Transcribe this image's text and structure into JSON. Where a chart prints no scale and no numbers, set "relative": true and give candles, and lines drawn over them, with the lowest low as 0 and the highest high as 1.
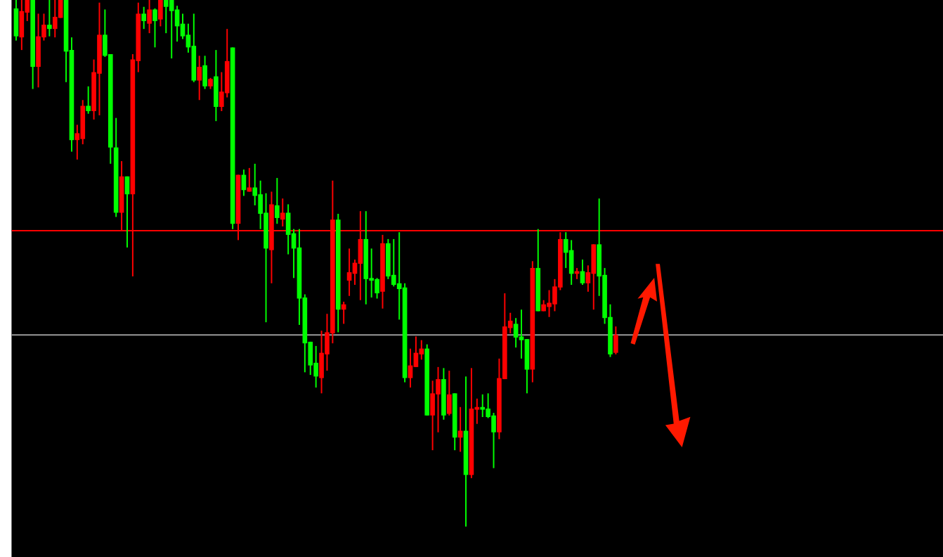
{
  "chart_data": {
    "type": "candlestick",
    "relative": true,
    "categories": [
      null,
      null,
      null,
      null,
      null,
      null,
      null,
      null,
      null,
      null,
      null,
      null,
      null,
      null,
      null,
      null,
      null,
      null,
      null,
      null,
      null,
      null,
      null,
      null,
      null,
      null,
      null,
      null,
      null,
      null,
      null,
      null,
      null,
      null,
      null,
      null,
      null,
      null,
      null,
      null,
      null,
      null,
      null,
      null,
      null,
      null,
      null,
      null,
      null,
      null,
      null,
      null,
      null,
      null,
      null,
      null,
      null,
      null,
      null,
      null,
      null,
      null,
      null,
      null,
      null,
      null,
      null,
      null,
      null,
      null,
      null,
      null,
      null,
      null,
      null,
      null,
      null,
      null,
      null,
      null,
      null,
      null,
      null,
      null,
      null,
      null,
      null,
      null,
      null,
      null,
      null,
      null,
      null,
      null,
      null,
      null,
      null,
      null,
      null,
      null,
      null,
      null,
      null,
      null,
      null,
      null,
      null,
      null,
      null
    ],
    "ohlc": [
      [
        0.984,
        1,
        0.923,
        0.931
      ],
      [
        0.929,
        1,
        0.905,
        0.979
      ],
      [
        0.976,
        1,
        0.96,
        1
      ],
      [
        1,
        1,
        0.831,
        0.873
      ],
      [
        0.873,
        0.974,
        0.834,
        0.931
      ],
      [
        0.929,
        0.974,
        0.923,
        0.953
      ],
      [
        0.953,
        1,
        0.931,
        0.945
      ],
      [
        0.945,
        1,
        0.929,
        0.968
      ],
      [
        0.966,
        1,
        0.966,
        1
      ],
      [
        1,
        1,
        0.844,
        0.902
      ],
      [
        0.905,
        0.929,
        0.712,
        0.734
      ],
      [
        0.734,
        0.763,
        0.697,
        0.747
      ],
      [
        0.736,
        0.81,
        0.726,
        0.799
      ],
      [
        0.799,
        0.836,
        0.784,
        0.789
      ],
      [
        0.789,
        0.887,
        0.773,
        0.863
      ],
      [
        0.86,
        0.995,
        0.781,
        0.934
      ],
      [
        0.934,
        0.982,
        0.892,
        0.894
      ],
      [
        0.897,
        0.897,
        0.689,
        0.72
      ],
      [
        0.72,
        0.776,
        0.588,
        0.596
      ],
      [
        0.596,
        0.694,
        0.562,
        0.665
      ],
      [
        0.665,
        0.665,
        0.53,
        0.631
      ],
      [
        0.631,
        0.897,
        0.475,
        0.887
      ],
      [
        0.884,
        0.995,
        0.863,
        0.974
      ],
      [
        0.974,
        0.987,
        0.945,
        0.96
      ],
      [
        0.955,
        1,
        0.937,
        0.982
      ],
      [
        0.982,
        0.984,
        0.91,
        0.96
      ],
      [
        0.963,
        1,
        0.95,
        1
      ],
      [
        1,
        1,
        0.937,
        0.987
      ],
      [
        1,
        1,
        0.889,
        0.979
      ],
      [
        0.982,
        0.989,
        0.921,
        0.95
      ],
      [
        0.955,
        0.974,
        0.926,
        0.931
      ],
      [
        0.934,
        0.955,
        0.9,
        0.91
      ],
      [
        0.913,
        0.974,
        0.844,
        0.847
      ],
      [
        0.847,
        0.894,
        0.81,
        0.873
      ],
      [
        0.876,
        0.894,
        0.831,
        0.836
      ],
      [
        0.836,
        0.852,
        0.831,
        0.85
      ],
      [
        0.855,
        0.905,
        0.77,
        0.797
      ],
      [
        0.797,
        0.863,
        0.789,
        0.826
      ],
      [
        0.823,
        0.945,
        0.815,
        0.884
      ],
      [
        0.91,
        0.91,
        0.565,
        0.575
      ],
      [
        0.575,
        0.668,
        0.544,
        0.668
      ],
      [
        0.668,
        0.678,
        0.628,
        0.639
      ],
      [
        0.636,
        0.681,
        0.636,
        0.644
      ],
      [
        0.644,
        0.689,
        0.61,
        0.628
      ],
      [
        0.631,
        0.657,
        0.565,
        0.594
      ],
      [
        0.596,
        0.633,
        0.388,
        0.528
      ],
      [
        0.525,
        0.636,
        0.462,
        0.612
      ],
      [
        0.61,
        0.662,
        0.575,
        0.586
      ],
      [
        0.583,
        0.623,
        0.57,
        0.596
      ],
      [
        0.596,
        0.612,
        0.517,
        0.554
      ],
      [
        0.557,
        0.565,
        0.472,
        0.528
      ],
      [
        0.53,
        0.565,
        0.383,
        0.433
      ],
      [
        0.435,
        0.441,
        0.293,
        0.348
      ],
      [
        0.351,
        0.351,
        0.288,
        0.306
      ],
      [
        0.311,
        0.343,
        0.264,
        0.285
      ],
      [
        0.282,
        0.372,
        0.253,
        0.33
      ],
      [
        0.327,
        0.404,
        0.296,
        0.369
      ],
      [
        0.367,
        0.657,
        0.348,
        0.583
      ],
      [
        0.583,
        0.594,
        0.369,
        0.412
      ],
      [
        0.412,
        0.427,
        0.385,
        0.422
      ],
      [
        0.467,
        0.528,
        0.438,
        0.483
      ],
      [
        0.48,
        0.507,
        0.459,
        0.501
      ],
      [
        0.499,
        0.599,
        0.43,
        0.546
      ],
      [
        0.546,
        0.599,
        0.422,
        0.47
      ],
      [
        0.472,
        0.528,
        0.435,
        0.467
      ],
      [
        0.47,
        0.472,
        0.433,
        0.443
      ],
      [
        0.446,
        0.554,
        0.414,
        0.538
      ],
      [
        0.538,
        0.546,
        0.47,
        0.475
      ],
      [
        0.478,
        0.546,
        0.456,
        0.459
      ],
      [
        0.462,
        0.559,
        0.393,
        0.451
      ],
      [
        0.454,
        0.462,
        0.274,
        0.282
      ],
      [
        0.282,
        0.338,
        0.264,
        0.306
      ],
      [
        0.303,
        0.361,
        0.303,
        0.33
      ],
      [
        0.327,
        0.354,
        0.317,
        0.338
      ],
      [
        0.338,
        0.346,
        0.211,
        0.211
      ],
      [
        0.211,
        0.277,
        0.145,
        0.253
      ],
      [
        0.251,
        0.303,
        0.179,
        0.28
      ],
      [
        0.28,
        0.301,
        0.203,
        0.211
      ],
      [
        0.214,
        0.296,
        0.211,
        0.251
      ],
      [
        0.253,
        0.253,
        0.145,
        0.169
      ],
      [
        0.169,
        0.227,
        0.142,
        0.182
      ],
      [
        0.182,
        0.285,
        0,
        0.098
      ],
      [
        0.098,
        0.301,
        0.092,
        0.224
      ],
      [
        0.222,
        0.243,
        0.195,
        0.227
      ],
      [
        0.227,
        0.251,
        0.208,
        0.222
      ],
      [
        0.224,
        0.253,
        0.206,
        0.208
      ],
      [
        0.211,
        0.216,
        0.111,
        0.179
      ],
      [
        0.179,
        0.319,
        0.166,
        0.282
      ],
      [
        0.28,
        0.443,
        0.28,
        0.38
      ],
      [
        0.377,
        0.406,
        0.367,
        0.391
      ],
      [
        0.385,
        0.396,
        0.34,
        0.359
      ],
      [
        0.361,
        0.412,
        0.319,
        0.354
      ],
      [
        0.356,
        0.356,
        0.253,
        0.298
      ],
      [
        0.298,
        0.504,
        0.274,
        0.491
      ],
      [
        0.491,
        0.565,
        0.409,
        0.409
      ],
      [
        0.409,
        0.43,
        0.409,
        0.422
      ],
      [
        0.417,
        0.449,
        0.398,
        0.425
      ],
      [
        0.422,
        0.47,
        0.409,
        0.456
      ],
      [
        0.454,
        0.559,
        0.449,
        0.546
      ],
      [
        0.546,
        0.559,
        0.491,
        0.52
      ],
      [
        0.525,
        0.544,
        0.459,
        0.48
      ],
      [
        0.48,
        0.491,
        0.47,
        0.485
      ],
      [
        0.485,
        0.507,
        0.459,
        0.462
      ],
      [
        0.462,
        0.496,
        0.446,
        0.483
      ],
      [
        0.48,
        0.536,
        0.412,
        0.536
      ],
      [
        0.536,
        0.623,
        0.438,
        0.475
      ],
      [
        0.478,
        0.491,
        0.385,
        0.396
      ],
      [
        0.398,
        0.422,
        0.322,
        0.327
      ],
      [
        0.33,
        0.38,
        0.327,
        0.364
      ]
    ],
    "colors": [
      "#00ff00",
      "#ff0000",
      "#ff0000",
      "#00ff00",
      "#ff0000",
      "#ff0000",
      "#00ff00",
      "#ff0000",
      "#ff0000",
      "#00ff00",
      "#00ff00",
      "#ff0000",
      "#ff0000",
      "#00ff00",
      "#ff0000",
      "#ff0000",
      "#00ff00",
      "#00ff00",
      "#00ff00",
      "#ff0000",
      "#00ff00",
      "#ff0000",
      "#ff0000",
      "#00ff00",
      "#ff0000",
      "#00ff00",
      "#ff0000",
      "#00ff00",
      "#00ff00",
      "#00ff00",
      "#00ff00",
      "#00ff00",
      "#00ff00",
      "#ff0000",
      "#00ff00",
      "#ff0000",
      "#00ff00",
      "#ff0000",
      "#ff0000",
      "#00ff00",
      "#ff0000",
      "#00ff00",
      "#ff0000",
      "#00ff00",
      "#00ff00",
      "#00ff00",
      "#ff0000",
      "#00ff00",
      "#ff0000",
      "#00ff00",
      "#00ff00",
      "#00ff00",
      "#00ff00",
      "#00ff00",
      "#00ff00",
      "#ff0000",
      "#ff0000",
      "#ff0000",
      "#00ff00",
      "#ff0000",
      "#ff0000",
      "#ff0000",
      "#ff0000",
      "#00ff00",
      "#00ff00",
      "#00ff00",
      "#ff0000",
      "#00ff00",
      "#00ff00",
      "#00ff00",
      "#00ff00",
      "#ff0000",
      "#ff0000",
      "#ff0000",
      "#00ff00",
      "#ff0000",
      "#ff0000",
      "#00ff00",
      "#ff0000",
      "#00ff00",
      "#ff0000",
      "#00ff00",
      "#ff0000",
      "#ff0000",
      "#00ff00",
      "#00ff00",
      "#00ff00",
      "#ff0000",
      "#ff0000",
      "#ff0000",
      "#00ff00",
      "#00ff00",
      "#00ff00",
      "#ff0000",
      "#00ff00",
      "#ff0000",
      "#ff0000",
      "#ff0000",
      "#ff0000",
      "#00ff00",
      "#00ff00",
      "#ff0000",
      "#00ff00",
      "#ff0000",
      "#ff0000",
      "#00ff00",
      "#00ff00",
      "#00ff00",
      "#ff0000"
    ],
    "ref_lines": [
      {
        "axis": "y",
        "value": 0.562,
        "color": "#ff0000"
      },
      {
        "axis": "y",
        "value": 0.364,
        "color": "#9a9a9a"
      }
    ]
  }
}
